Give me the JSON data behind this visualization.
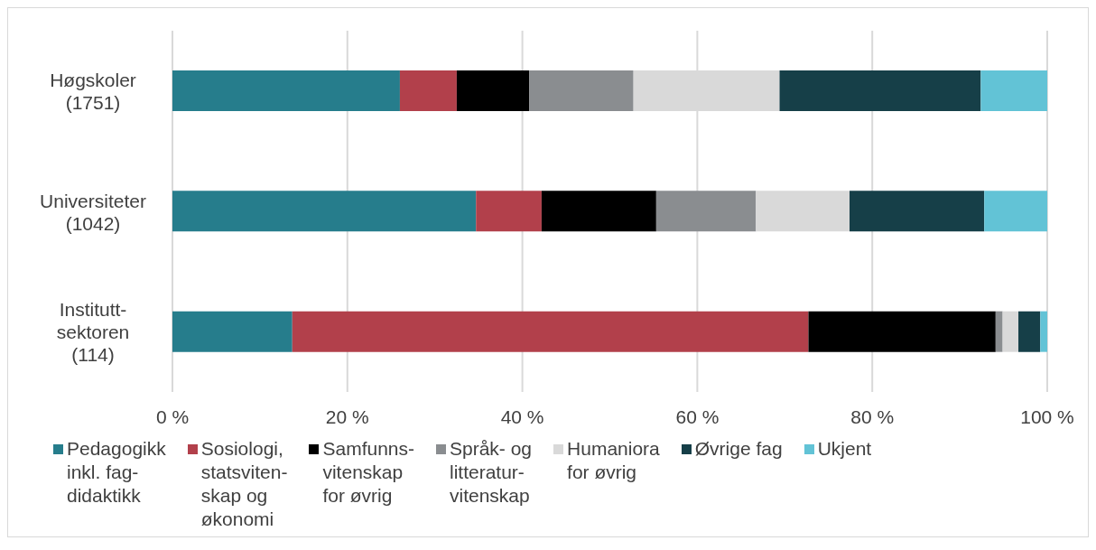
{
  "chart_data": {
    "type": "bar",
    "orientation": "horizontal",
    "stacked": true,
    "categories": [
      "Høgskoler\n(1751)",
      "Universiteter\n(1042)",
      "Institutt-\nsektoren\n(114)"
    ],
    "series": [
      {
        "name": "Pedagogikk\ninkl. fag-\ndidaktikk",
        "color": "#267d8c",
        "values": [
          26.0,
          34.7,
          13.7
        ]
      },
      {
        "name": "Sosiologi,\nstatsviten-\nskap og\nøkonomi",
        "color": "#b2404b",
        "values": [
          6.5,
          7.5,
          59.0
        ]
      },
      {
        "name": "Samfunns-\nvitenskap\nfor øvrig",
        "color": "#000000",
        "values": [
          8.3,
          13.1,
          21.4
        ]
      },
      {
        "name": "Språk- og\nlitteratur-\nvitenskap",
        "color": "#8a8d90",
        "values": [
          11.9,
          11.4,
          0.8
        ]
      },
      {
        "name": "Humaniora\nfor øvrig",
        "color": "#d9d9d9",
        "values": [
          16.7,
          10.7,
          1.8
        ]
      },
      {
        "name": "Øvrige fag",
        "color": "#163f48",
        "values": [
          23.0,
          15.4,
          2.5
        ]
      },
      {
        "name": "Ukjent",
        "color": "#62c3d6",
        "values": [
          7.6,
          7.2,
          0.8
        ]
      }
    ],
    "xlim": [
      0,
      100
    ],
    "xticks": [
      {
        "value": 0,
        "label": "0 %"
      },
      {
        "value": 20,
        "label": "20 %"
      },
      {
        "value": 40,
        "label": "40 %"
      },
      {
        "value": 60,
        "label": "60 %"
      },
      {
        "value": 80,
        "label": "80 %"
      },
      {
        "value": 100,
        "label": "100 %"
      }
    ],
    "grid": "x",
    "legend": "bottom"
  }
}
